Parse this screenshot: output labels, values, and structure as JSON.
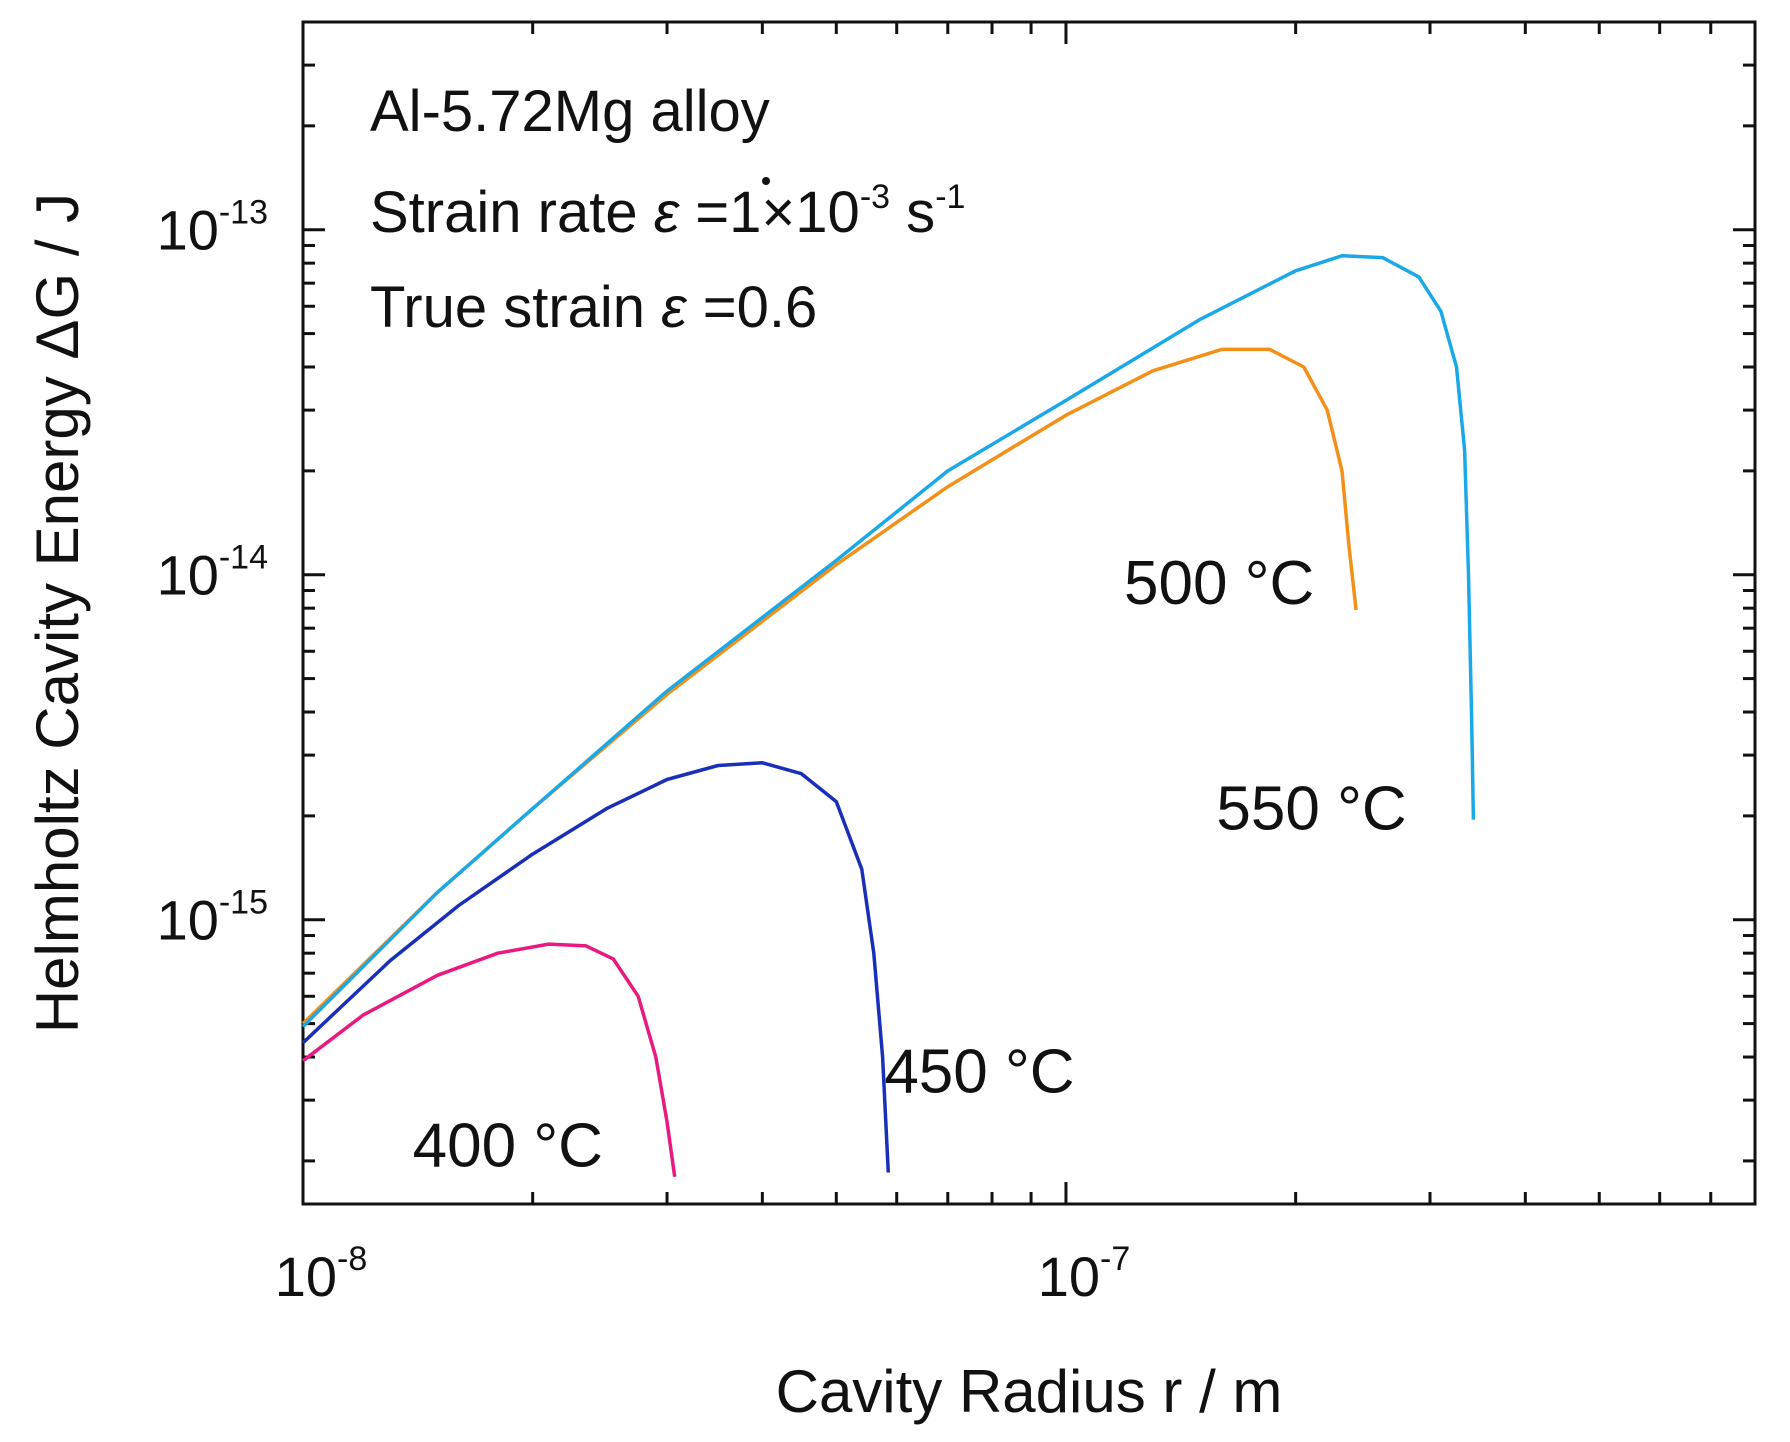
{
  "chart_data": {
    "type": "line",
    "title": "",
    "xlabel": "Cavity Radius r / m",
    "ylabel": "Helmholtz Cavity Energy ΔG / J",
    "xscale": "log",
    "yscale": "log",
    "xlim": [
      1e-08,
      8e-07
    ],
    "ylim": [
      1.5e-16,
      4e-13
    ],
    "grid": false,
    "legend": "none",
    "x_ticks": [
      {
        "base": "10",
        "exp": "-8",
        "value": 1e-08
      },
      {
        "base": "10",
        "exp": "-7",
        "value": 1e-07
      }
    ],
    "y_ticks": [
      {
        "base": "10",
        "exp": "-15",
        "value": 1e-15
      },
      {
        "base": "10",
        "exp": "-14",
        "value": 1e-14
      },
      {
        "base": "10",
        "exp": "-13",
        "value": 1e-13
      }
    ],
    "annotations": {
      "line1": "Al-5.72Mg alloy",
      "line2_prefix": "Strain rate ",
      "line2_symbol": "ε",
      "line2_eq": " =1×10",
      "line2_exp1": "-3",
      "line2_unit": " s",
      "line2_exp2": "-1",
      "line3_prefix": "True strain ",
      "line3_symbol": "ε",
      "line3_eq": " =0.6"
    },
    "series": [
      {
        "name": "400 °C",
        "color": "#e8197f",
        "points": [
          [
            1e-08,
            3.9e-16
          ],
          [
            1.2e-08,
            5.3e-16
          ],
          [
            1.5e-08,
            6.9e-16
          ],
          [
            1.8e-08,
            8e-16
          ],
          [
            2.1e-08,
            8.5e-16
          ],
          [
            2.35e-08,
            8.4e-16
          ],
          [
            2.55e-08,
            7.7e-16
          ],
          [
            2.75e-08,
            6e-16
          ],
          [
            2.9e-08,
            4e-16
          ],
          [
            3e-08,
            2.6e-16
          ],
          [
            3.07e-08,
            1.8e-16
          ]
        ]
      },
      {
        "name": "450 °C",
        "color": "#1a2fb8",
        "points": [
          [
            1e-08,
            4.4e-16
          ],
          [
            1.3e-08,
            7.6e-16
          ],
          [
            1.6e-08,
            1.1e-15
          ],
          [
            2e-08,
            1.55e-15
          ],
          [
            2.5e-08,
            2.1e-15
          ],
          [
            3e-08,
            2.55e-15
          ],
          [
            3.5e-08,
            2.8e-15
          ],
          [
            4e-08,
            2.85e-15
          ],
          [
            4.5e-08,
            2.65e-15
          ],
          [
            5e-08,
            2.2e-15
          ],
          [
            5.4e-08,
            1.4e-15
          ],
          [
            5.6e-08,
            8e-16
          ],
          [
            5.75e-08,
            4e-16
          ],
          [
            5.85e-08,
            1.85e-16
          ]
        ]
      },
      {
        "name": "500 °C",
        "color": "#f39019",
        "points": [
          [
            1e-08,
            5e-16
          ],
          [
            1.5e-08,
            1.2e-15
          ],
          [
            2e-08,
            2.1e-15
          ],
          [
            3e-08,
            4.5e-15
          ],
          [
            5e-08,
            1.07e-14
          ],
          [
            7e-08,
            1.8e-14
          ],
          [
            1e-07,
            2.9e-14
          ],
          [
            1.3e-07,
            3.9e-14
          ],
          [
            1.6e-07,
            4.5e-14
          ],
          [
            1.85e-07,
            4.5e-14
          ],
          [
            2.05e-07,
            4e-14
          ],
          [
            2.2e-07,
            3e-14
          ],
          [
            2.3e-07,
            2e-14
          ],
          [
            2.35e-07,
            1.2e-14
          ],
          [
            2.4e-07,
            7.9e-15
          ]
        ]
      },
      {
        "name": "550 °C",
        "color": "#1aa9e6",
        "points": [
          [
            1e-08,
            4.9e-16
          ],
          [
            1.5e-08,
            1.2e-15
          ],
          [
            2e-08,
            2.1e-15
          ],
          [
            3e-08,
            4.6e-15
          ],
          [
            5e-08,
            1.1e-14
          ],
          [
            7e-08,
            2e-14
          ],
          [
            1e-07,
            3.2e-14
          ],
          [
            1.5e-07,
            5.5e-14
          ],
          [
            2e-07,
            7.6e-14
          ],
          [
            2.3e-07,
            8.4e-14
          ],
          [
            2.6e-07,
            8.3e-14
          ],
          [
            2.9e-07,
            7.3e-14
          ],
          [
            3.1e-07,
            5.8e-14
          ],
          [
            3.25e-07,
            4e-14
          ],
          [
            3.33e-07,
            2.3e-14
          ],
          [
            3.37e-07,
            1e-14
          ],
          [
            3.4e-07,
            4e-15
          ],
          [
            3.42e-07,
            1.95e-15
          ]
        ]
      }
    ]
  }
}
